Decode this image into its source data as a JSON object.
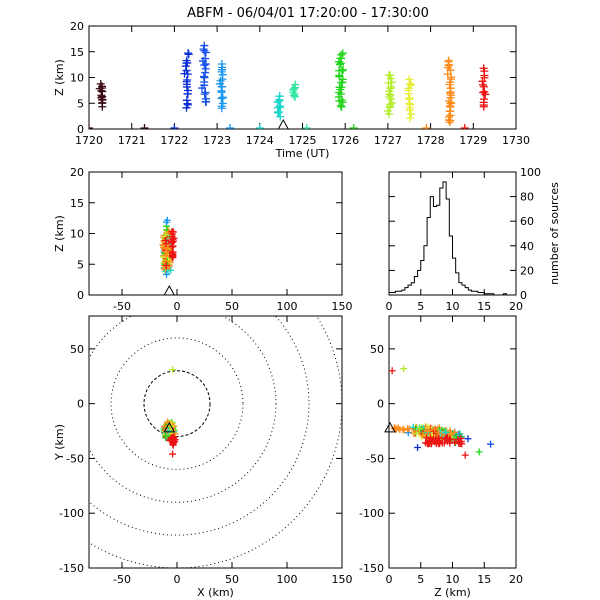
{
  "title": "ABFM - 06/04/01 17:20:00 - 17:30:00",
  "chart_data": [
    {
      "id": "time_height",
      "type": "scatter",
      "xlabel": "Time (UT)",
      "ylabel": "Z (km)",
      "xlim": [
        1720,
        1730
      ],
      "ylim": [
        0,
        20
      ],
      "xticks": [
        "1720",
        "1721",
        "1722",
        "1723",
        "1724",
        "1725",
        "1726",
        "1727",
        "1728",
        "1729",
        "1730"
      ],
      "yticks": [
        "0",
        "5",
        "10",
        "15",
        "20"
      ],
      "station_marker": {
        "x": 1724.55,
        "y": 0
      },
      "clusters": [
        {
          "t": 1720.3,
          "zmin": 4.5,
          "zmax": 8.6,
          "color": "#3a0a14",
          "count": 14
        },
        {
          "t": 1722.3,
          "zmin": 4.0,
          "zmax": 14.8,
          "color": "#0a2fd6",
          "count": 20
        },
        {
          "t": 1722.7,
          "zmin": 4.8,
          "zmax": 16.5,
          "color": "#1550e8",
          "count": 20
        },
        {
          "t": 1723.1,
          "zmin": 4.0,
          "zmax": 12.5,
          "color": "#1a96f0",
          "count": 18
        },
        {
          "t": 1724.45,
          "zmin": 2.5,
          "zmax": 6.5,
          "color": "#18d6cc",
          "count": 12
        },
        {
          "t": 1724.8,
          "zmin": 6.5,
          "zmax": 8.3,
          "color": "#33e6a0",
          "count": 8
        },
        {
          "t": 1725.9,
          "zmin": 4.2,
          "zmax": 14.8,
          "color": "#22d41c",
          "count": 26
        },
        {
          "t": 1727.05,
          "zmin": 3.0,
          "zmax": 10.5,
          "color": "#b2ec2a",
          "count": 18
        },
        {
          "t": 1727.5,
          "zmin": 2.5,
          "zmax": 9.5,
          "color": "#e6ee33",
          "count": 14
        },
        {
          "t": 1728.45,
          "zmin": 1.0,
          "zmax": 13.5,
          "color": "#ff8c1a",
          "count": 30
        },
        {
          "t": 1729.25,
          "zmin": 4.2,
          "zmax": 11.5,
          "color": "#ee1414",
          "count": 14
        }
      ],
      "ground_markers": [
        {
          "t": 1720.0,
          "color": "#3a0a14"
        },
        {
          "t": 1721.3,
          "color": "#3a0a14"
        },
        {
          "t": 1722.0,
          "color": "#0a2fd6"
        },
        {
          "t": 1723.3,
          "color": "#1a96f0"
        },
        {
          "t": 1724.0,
          "color": "#18d6cc"
        },
        {
          "t": 1725.1,
          "color": "#33e6a0"
        },
        {
          "t": 1726.2,
          "color": "#22d41c"
        },
        {
          "t": 1727.9,
          "color": "#ff8c1a"
        },
        {
          "t": 1728.8,
          "color": "#ee1414"
        }
      ]
    },
    {
      "id": "xz_view",
      "type": "scatter",
      "xlabel": "",
      "ylabel": "Z (km)",
      "xlim": [
        -80,
        150
      ],
      "ylim": [
        0,
        20
      ],
      "xticks": [
        "-50",
        "0",
        "50",
        "100",
        "150"
      ],
      "yticks": [
        "0",
        "5",
        "10",
        "15",
        "20"
      ],
      "station_marker": {
        "x": -7,
        "y": 0
      }
    },
    {
      "id": "altitude_histogram",
      "type": "line",
      "xlabel": "",
      "ylabel": "number of sources",
      "xlim": [
        0,
        20
      ],
      "ylim": [
        0,
        100
      ],
      "xticks": [
        "0",
        "5",
        "10",
        "15",
        "20"
      ],
      "yticks": [
        "0",
        "20",
        "40",
        "60",
        "80",
        "100"
      ],
      "bin_width": 0.5,
      "bin_start": 0,
      "counts": [
        2,
        2,
        3,
        3,
        4,
        6,
        8,
        10,
        15,
        20,
        28,
        40,
        63,
        80,
        72,
        73,
        87,
        92,
        78,
        48,
        30,
        18,
        10,
        8,
        6,
        4,
        3,
        3,
        2,
        2,
        1,
        1,
        1,
        0,
        0,
        0,
        1,
        0,
        0,
        0
      ]
    },
    {
      "id": "plan_view",
      "type": "scatter",
      "xlabel": "X (km)",
      "ylabel": "Y (km)",
      "xlim": [
        -80,
        150
      ],
      "ylim": [
        -150,
        80
      ],
      "xticks": [
        "-50",
        "0",
        "50",
        "100",
        "150"
      ],
      "yticks": [
        "-150",
        "-100",
        "-50",
        "0",
        "50"
      ],
      "range_rings_km": [
        30,
        60,
        90,
        120,
        150
      ],
      "station_marker": {
        "x": -7,
        "y": -23
      },
      "outliers": [
        {
          "x": -4,
          "y": 31,
          "color": "#b2ec2a"
        },
        {
          "x": -4,
          "y": -46,
          "color": "#ee1414"
        }
      ]
    },
    {
      "id": "zy_view",
      "type": "scatter",
      "xlabel": "Z (km)",
      "ylabel": "",
      "xlim": [
        0,
        20
      ],
      "ylim": [
        -150,
        80
      ],
      "xticks": [
        "0",
        "5",
        "10",
        "15",
        "20"
      ],
      "yticks": [
        "-150",
        "-100",
        "-50",
        "0",
        "50"
      ],
      "station_marker": {
        "x": 0,
        "y": -23
      },
      "outliers": [
        {
          "x": 0.5,
          "y": 30,
          "color": "#ee1414"
        },
        {
          "x": 2.3,
          "y": 32,
          "color": "#b2ec2a"
        },
        {
          "x": 4.5,
          "y": -40,
          "color": "#0a2fd6"
        },
        {
          "x": 12.0,
          "y": -47,
          "color": "#ee1414"
        },
        {
          "x": 14.2,
          "y": -44,
          "color": "#22d41c"
        },
        {
          "x": 16.0,
          "y": -37,
          "color": "#1550e8"
        }
      ]
    }
  ]
}
